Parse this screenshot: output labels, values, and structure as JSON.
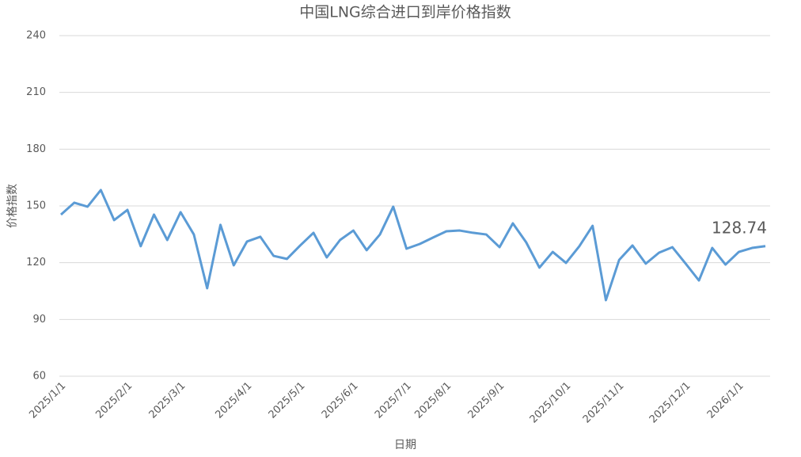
{
  "chart_data": {
    "type": "line",
    "title": "中国LNG综合进口到岸价格指数",
    "x_label": "日期",
    "y_label": "价格指数",
    "categories": [
      "2025/1/1",
      null,
      null,
      null,
      null,
      "2025/2/1",
      null,
      null,
      null,
      "2025/3/1",
      null,
      null,
      null,
      null,
      "2025/4/1",
      null,
      null,
      null,
      "2025/5/1",
      null,
      null,
      null,
      "2025/6/1",
      null,
      null,
      null,
      "2025/7/1",
      null,
      null,
      "2025/8/1",
      null,
      null,
      null,
      "2025/9/1",
      null,
      null,
      null,
      null,
      "2025/10/1",
      null,
      null,
      null,
      "2025/11/1",
      null,
      null,
      null,
      null,
      "2025/12/1",
      null,
      null,
      null,
      "2026/1/1",
      null,
      null
    ],
    "series": [
      {
        "name": "价格指数",
        "color": "#5b9bd5",
        "values": [
          145.4,
          151.7,
          149.6,
          158.4,
          142.5,
          147.9,
          128.7,
          145.4,
          132.0,
          146.7,
          134.9,
          106.5,
          140.0,
          118.6,
          131.2,
          133.7,
          123.6,
          122.0,
          129.1,
          135.8,
          122.8,
          132.0,
          137.0,
          126.6,
          134.9,
          149.6,
          127.4,
          129.9,
          133.3,
          136.6,
          137.0,
          135.8,
          134.9,
          128.2,
          140.8,
          130.8,
          117.4,
          125.7,
          119.9,
          128.7,
          139.5,
          100.2,
          121.5,
          129.1,
          119.5,
          125.3,
          128.2,
          119.5,
          110.6,
          127.8,
          119.0,
          125.7,
          127.8,
          128.74
        ]
      }
    ],
    "ylim": [
      60,
      240
    ],
    "yticks": [
      60,
      90,
      120,
      150,
      180,
      210,
      240
    ],
    "grid": true
  }
}
